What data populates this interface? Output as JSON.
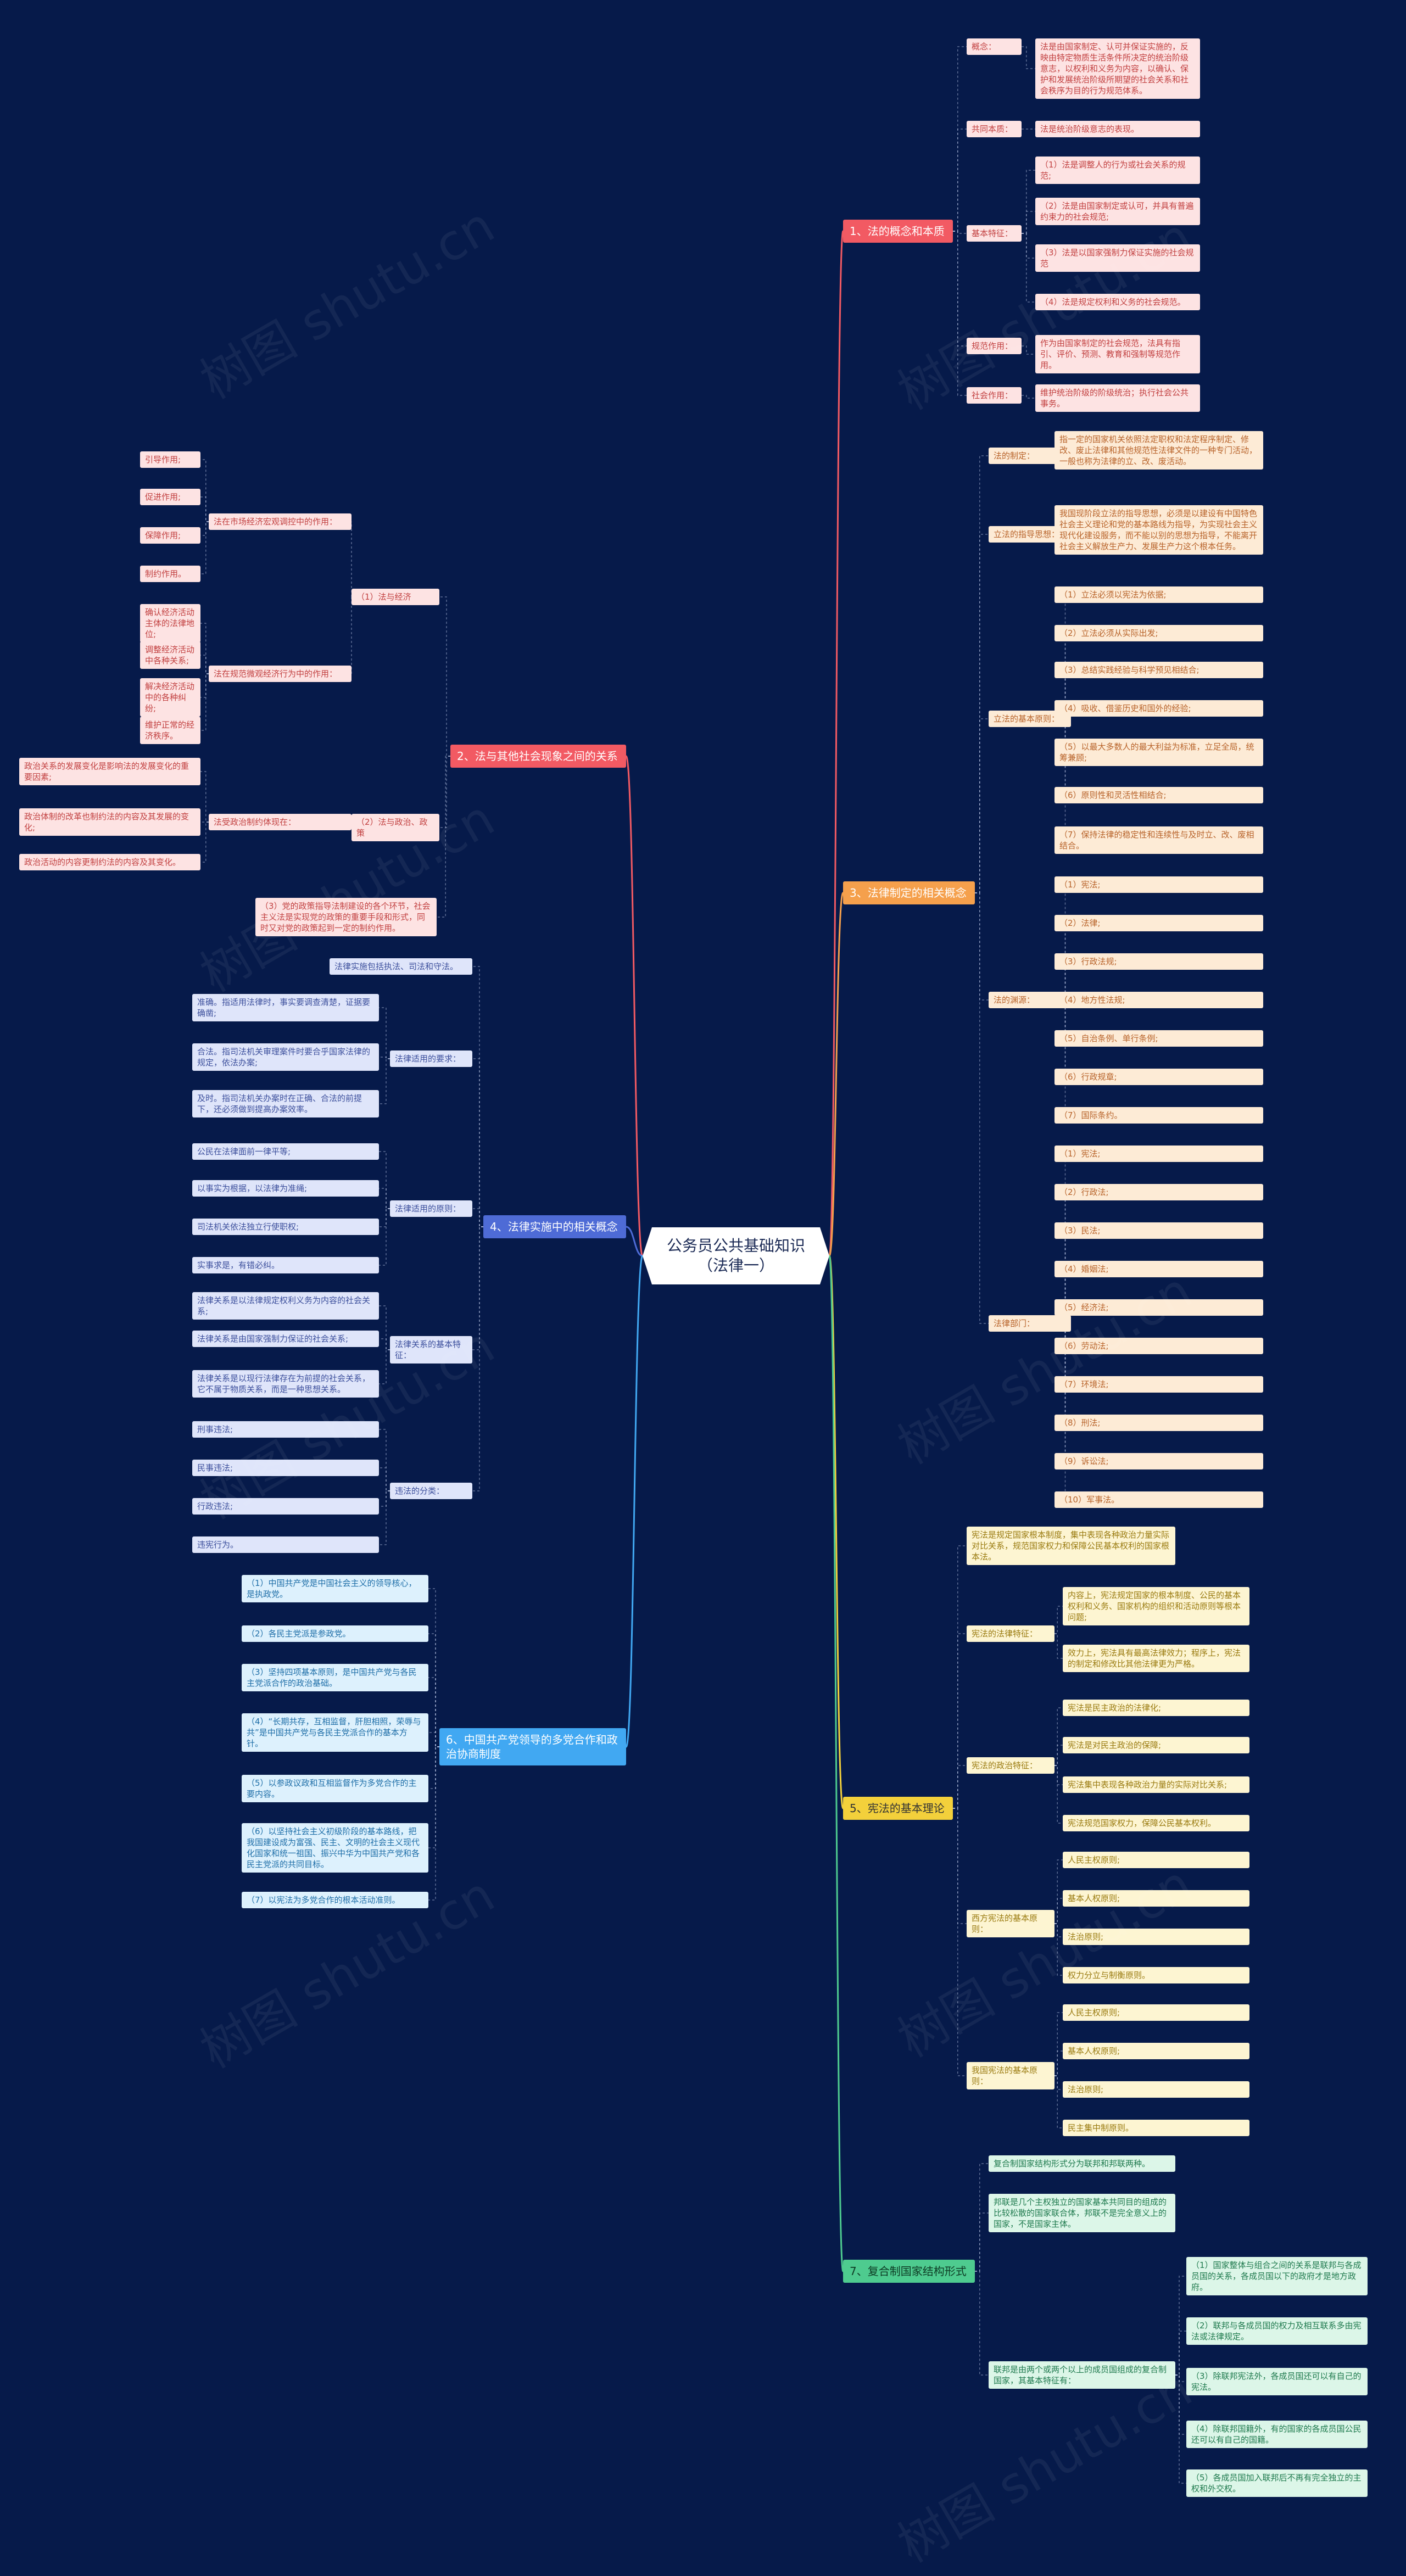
{
  "root": "公务员公共基础知识（法律一）",
  "watermark": "树图 shutu.cn",
  "colors": {
    "background": "#061a4a",
    "red": "#f25a63",
    "orange": "#f5a04c",
    "yellow": "#f3d03b",
    "green": "#4ecb8f",
    "blue": "#4e6bd6",
    "sky": "#41a8f2"
  },
  "branches": [
    {
      "label": "1、法的概念和本质",
      "children": [
        {
          "label": "概念：",
          "children": [
            {
              "label": "法是由国家制定、认可并保证实施的，反映由特定物质生活条件所决定的统治阶级意志，以权利和义务为内容，以确认、保护和发展统治阶级所期望的社会关系和社会秩序为目的行为规范体系。"
            }
          ]
        },
        {
          "label": "共同本质：",
          "children": [
            {
              "label": "法是统治阶级意志的表现。"
            }
          ]
        },
        {
          "label": "基本特征：",
          "children": [
            {
              "label": "（1）法是调整人的行为或社会关系的规范;"
            },
            {
              "label": "（2）法是由国家制定或认可，并具有普遍约束力的社会规范;"
            },
            {
              "label": "（3）法是以国家强制力保证实施的社会规范"
            },
            {
              "label": "（4）法是规定权利和义务的社会规范。"
            }
          ]
        },
        {
          "label": "规范作用：",
          "children": [
            {
              "label": "作为由国家制定的社会规范，法具有指引、评价、预测、教育和强制等规范作用。"
            }
          ]
        },
        {
          "label": "社会作用：",
          "children": [
            {
              "label": "维护统治阶级的阶级统治；执行社会公共事务。"
            }
          ]
        }
      ]
    },
    {
      "label": "2、法与其他社会现象之间的关系",
      "children": [
        {
          "label": "（1）法与经济",
          "children": [
            {
              "label": "法在市场经济宏观调控中的作用：",
              "children": [
                {
                  "label": "引导作用;"
                },
                {
                  "label": "促进作用;"
                },
                {
                  "label": "保障作用;"
                },
                {
                  "label": "制约作用。"
                }
              ]
            },
            {
              "label": "法在规范微观经济行为中的作用：",
              "children": [
                {
                  "label": "确认经济活动主体的法律地位;"
                },
                {
                  "label": "调整经济活动中各种关系;"
                },
                {
                  "label": "解决经济活动中的各种纠纷;"
                },
                {
                  "label": "维护正常的经济秩序。"
                }
              ]
            }
          ]
        },
        {
          "label": "（2）法与政治、政策",
          "children": [
            {
              "label": "法受政治制约体现在：",
              "children": [
                {
                  "label": "政治关系的发展变化是影响法的发展变化的重要因素;"
                },
                {
                  "label": "政治体制的改革也制约法的内容及其发展的变化;"
                },
                {
                  "label": "政治活动的内容更制约法的内容及其变化。"
                }
              ]
            }
          ]
        },
        {
          "label": "（3）党的政策指导法制建设的各个环节，社会主义法是实现党的政策的重要手段和形式，同时又对党的政策起到一定的制约作用。"
        }
      ]
    },
    {
      "label": "3、法律制定的相关概念",
      "children": [
        {
          "label": "法的制定：",
          "children": [
            {
              "label": "指一定的国家机关依照法定职权和法定程序制定、修改、废止法律和其他规范性法律文件的一种专门活动，一般也称为法律的立、改、废活动。"
            }
          ]
        },
        {
          "label": "立法的指导思想：",
          "children": [
            {
              "label": "我国现阶段立法的指导思想，必须是以建设有中国特色社会主义理论和党的基本路线为指导，为实现社会主义现代化建设服务，而不能以别的思想为指导，不能离开社会主义解放生产力、发展生产力这个根本任务。"
            }
          ]
        },
        {
          "label": "立法的基本原则：",
          "children": [
            {
              "label": "（1）立法必须以宪法为依据;"
            },
            {
              "label": "（2）立法必须从实际出发;"
            },
            {
              "label": "（3）总结实践经验与科学预见相结合;"
            },
            {
              "label": "（4）吸收、借鉴历史和国外的经验;"
            },
            {
              "label": "（5）以最大多数人的最大利益为标准，立足全局，统筹兼顾;"
            },
            {
              "label": "（6）原则性和灵活性相结合;"
            },
            {
              "label": "（7）保持法律的稳定性和连续性与及时立、改、废相结合。"
            }
          ]
        },
        {
          "label": "法的渊源：",
          "children": [
            {
              "label": "（1）宪法;"
            },
            {
              "label": "（2）法律;"
            },
            {
              "label": "（3）行政法规;"
            },
            {
              "label": "（4）地方性法规;"
            },
            {
              "label": "（5）自治条例、单行条例;"
            },
            {
              "label": "（6）行政规章;"
            },
            {
              "label": "（7）国际条约。"
            }
          ]
        },
        {
          "label": "法律部门：",
          "children": [
            {
              "label": "（1）宪法;"
            },
            {
              "label": "（2）行政法;"
            },
            {
              "label": "（3）民法;"
            },
            {
              "label": "（4）婚姻法;"
            },
            {
              "label": "（5）经济法;"
            },
            {
              "label": "（6）劳动法;"
            },
            {
              "label": "（7）环境法;"
            },
            {
              "label": "（8）刑法;"
            },
            {
              "label": "（9）诉讼法;"
            },
            {
              "label": "（10）军事法。"
            }
          ]
        }
      ]
    },
    {
      "label": "4、法律实施中的相关概念",
      "children": [
        {
          "label": "法律实施包括执法、司法和守法。"
        },
        {
          "label": "法律适用的要求：",
          "children": [
            {
              "label": "准确。指适用法律时，事实要调查清楚，证据要确凿;"
            },
            {
              "label": "合法。指司法机关审理案件时要合乎国家法律的规定，依法办案;"
            },
            {
              "label": "及时。指司法机关办案时在正确、合法的前提下，还必须做到提高办案效率。"
            }
          ]
        },
        {
          "label": "法律适用的原则：",
          "children": [
            {
              "label": "公民在法律面前一律平等;"
            },
            {
              "label": "以事实为根据，以法律为准绳;"
            },
            {
              "label": "司法机关依法独立行使职权;"
            },
            {
              "label": "实事求是，有错必纠。"
            }
          ]
        },
        {
          "label": "法律关系的基本特征：",
          "children": [
            {
              "label": "法律关系是以法律规定权利义务为内容的社会关系;"
            },
            {
              "label": "法律关系是由国家强制力保证的社会关系;"
            },
            {
              "label": "法律关系是以现行法律存在为前提的社会关系，它不属于物质关系，而是一种思想关系。"
            }
          ]
        },
        {
          "label": "违法的分类：",
          "children": [
            {
              "label": "刑事违法;"
            },
            {
              "label": "民事违法;"
            },
            {
              "label": "行政违法;"
            },
            {
              "label": "违宪行为。"
            }
          ]
        }
      ]
    },
    {
      "label": "5、宪法的基本理论",
      "children": [
        {
          "label": "宪法是规定国家根本制度，集中表现各种政治力量实际对比关系，规范国家权力和保障公民基本权利的国家根本法。"
        },
        {
          "label": "宪法的法律特征：",
          "children": [
            {
              "label": "内容上，宪法规定国家的根本制度、公民的基本权利和义务、国家机构的组织和活动原则等根本问题;"
            },
            {
              "label": "效力上，宪法具有最高法律效力；程序上，宪法的制定和修改比其他法律更为严格。"
            }
          ]
        },
        {
          "label": "宪法的政治特征：",
          "children": [
            {
              "label": "宪法是民主政治的法律化;"
            },
            {
              "label": "宪法是对民主政治的保障;"
            },
            {
              "label": "宪法集中表现各种政治力量的实际对比关系;"
            },
            {
              "label": "宪法规范国家权力，保障公民基本权利。"
            }
          ]
        },
        {
          "label": "西方宪法的基本原则：",
          "children": [
            {
              "label": "人民主权原则;"
            },
            {
              "label": "基本人权原则;"
            },
            {
              "label": "法治原则;"
            },
            {
              "label": "权力分立与制衡原则。"
            }
          ]
        },
        {
          "label": "我国宪法的基本原则：",
          "children": [
            {
              "label": "人民主权原则;"
            },
            {
              "label": "基本人权原则;"
            },
            {
              "label": "法治原则;"
            },
            {
              "label": "民主集中制原则。"
            }
          ]
        }
      ]
    },
    {
      "label": "6、中国共产党领导的多党合作和政治协商制度",
      "children": [
        {
          "label": "（1）中国共产党是中国社会主义的领导核心，是执政党。"
        },
        {
          "label": "（2）各民主党派是参政党。"
        },
        {
          "label": "（3）坚持四项基本原则，是中国共产党与各民主党派合作的政治基础。"
        },
        {
          "label": "（4）“长期共存，互相监督，肝胆相照，荣辱与共”是中国共产党与各民主党派合作的基本方针。"
        },
        {
          "label": "（5）以参政议政和互相监督作为多党合作的主要内容。"
        },
        {
          "label": "（6）以坚持社会主义初级阶段的基本路线，把我国建设成为富强、民主、文明的社会主义现代化国家和统一祖国、振兴中华为中国共产党和各民主党派的共同目标。"
        },
        {
          "label": "（7）以宪法为多党合作的根本活动准则。"
        }
      ]
    },
    {
      "label": "7、复合制国家结构形式",
      "children": [
        {
          "label": "复合制国家结构形式分为联邦和邦联两种。"
        },
        {
          "label": "邦联是几个主权独立的国家基本共同目的组成的比较松散的国家联合体，邦联不是完全意义上的国家，不是国家主体。"
        },
        {
          "label": "联邦是由两个或两个以上的成员国组成的复合制国家，其基本特征有：",
          "children": [
            {
              "label": "（1）国家整体与组合之间的关系是联邦与各成员国的关系，各成员国以下的政府才是地方政府。"
            },
            {
              "label": "（2）联邦与各成员国的权力及相互联系多由宪法或法律规定。"
            },
            {
              "label": "（3）除联邦宪法外，各成员国还可以有自己的宪法。"
            },
            {
              "label": "（4）除联邦国籍外，有的国家的各成员国公民还可以有自己的国籍。"
            },
            {
              "label": "（5）各成员国加入联邦后不再有完全独立的主权和外交权。"
            }
          ]
        }
      ]
    }
  ]
}
